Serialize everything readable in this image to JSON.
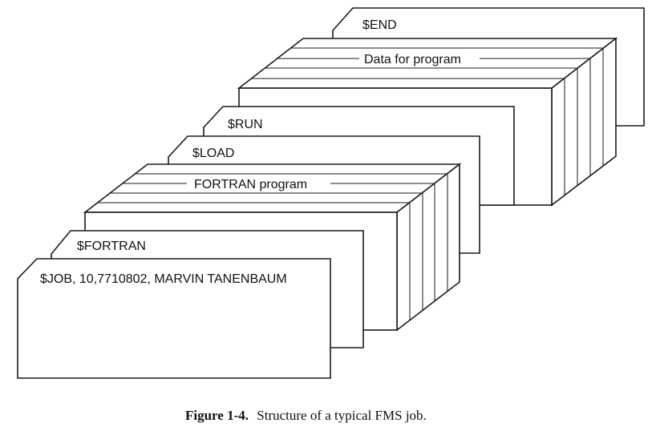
{
  "cards": {
    "end": "$END",
    "data_program": "Data for program",
    "run": "$RUN",
    "load": "$LOAD",
    "fortran_program": "FORTRAN program",
    "fortran": "$FORTRAN",
    "job": "$JOB, 10,7710802, MARVIN TANENBAUM"
  },
  "caption": {
    "number": "Figure 1-4.",
    "text": "Structure of a typical FMS job."
  }
}
